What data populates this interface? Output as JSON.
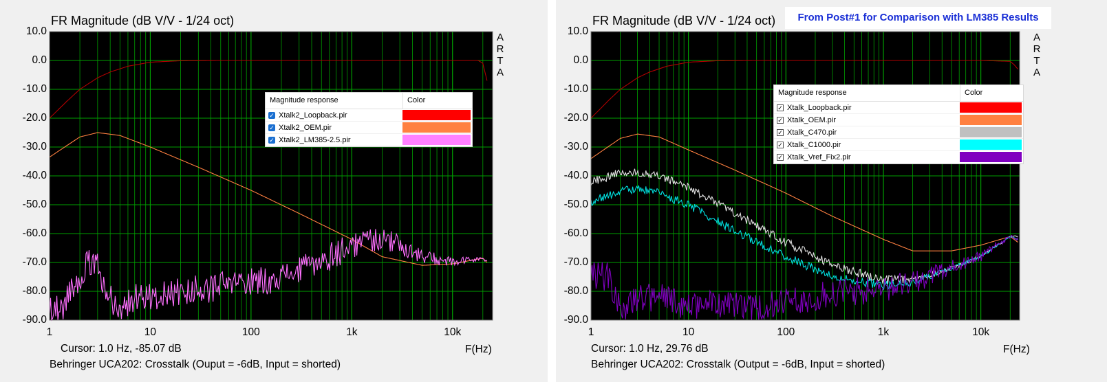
{
  "banner": "From Post#1 for Comparison with LM385 Results",
  "charts": [
    {
      "title": "FR Magnitude (dB V/V - 1/24 oct)",
      "arta": [
        "A",
        "R",
        "T",
        "A"
      ],
      "cursor": "Cursor: 1.0 Hz, -85.07 dB",
      "caption": "Behringer UCA202: Crosstalk (Ouput = -6dB, Input = shorted)",
      "xaxis_label": "F(Hz)",
      "legend": {
        "header_name": "Magnitude response",
        "header_color": "Color",
        "checkbox_style": "blue",
        "items": [
          {
            "name": "Xtalk2_Loopback.pir",
            "color": "#ff0000"
          },
          {
            "name": "Xtalk2_OEM.pir",
            "color": "#ff8040"
          },
          {
            "name": "Xtalk2_LM385-2.5.pir",
            "color": "#ff80ff"
          }
        ]
      }
    },
    {
      "title": "FR Magnitude (dB V/V - 1/24 oct)",
      "arta": [
        "A",
        "R",
        "T",
        "A"
      ],
      "cursor": "Cursor: 1.0 Hz, 29.76 dB",
      "caption": "Behringer UCA202: Crosstalk (Output = -6dB, Input = shorted)",
      "xaxis_label": "F(Hz)",
      "legend": {
        "header_name": "Magnitude response",
        "header_color": "Color",
        "checkbox_style": "plain",
        "items": [
          {
            "name": "Xtalk_Loopback.pir",
            "color": "#ff0000"
          },
          {
            "name": "Xtalk_OEM.pir",
            "color": "#ff8040"
          },
          {
            "name": "Xtalk_C470.pir",
            "color": "#c0c0c0"
          },
          {
            "name": "Xtalk_C1000.pir",
            "color": "#00ffff"
          },
          {
            "name": "Xtalk_Vref_Fix2.pir",
            "color": "#8000c0"
          }
        ]
      }
    }
  ],
  "chart_data": [
    {
      "type": "line",
      "title": "FR Magnitude (dB V/V - 1/24 oct)",
      "xlabel": "F(Hz)",
      "ylabel": "",
      "xscale": "log",
      "xlim": [
        1,
        25000
      ],
      "ylim": [
        -90,
        10
      ],
      "xticks": [
        1,
        10,
        100,
        1000,
        10000
      ],
      "xtick_labels": [
        "1",
        "10",
        "100",
        "1k",
        "10k"
      ],
      "yticks": [
        10,
        0,
        -10,
        -20,
        -30,
        -40,
        -50,
        -60,
        -70,
        -80,
        -90
      ],
      "ytick_labels": [
        "10.0",
        "0.0",
        "-10.0",
        "-20.0",
        "-30.0",
        "-40.0",
        "-50.0",
        "-60.0",
        "-70.0",
        "-80.0",
        "-90.0"
      ],
      "background": "#000000",
      "grid": true,
      "grid_color": "#00a000",
      "series": [
        {
          "name": "Xtalk2_Loopback.pir",
          "color": "#b00000",
          "noise": 0,
          "x": [
            1,
            1.5,
            2,
            3,
            4,
            6,
            10,
            20,
            50,
            100,
            1000,
            10000,
            18000,
            20000,
            22000
          ],
          "y": [
            -20,
            -14,
            -10,
            -6,
            -4,
            -2,
            -0.6,
            -0.1,
            0,
            0,
            0,
            0,
            0,
            -1,
            -7
          ]
        },
        {
          "name": "Xtalk2_OEM.pir",
          "color": "#ff8040",
          "noise": 0,
          "x": [
            1,
            2,
            3,
            5,
            10,
            30,
            100,
            300,
            1000,
            2000,
            5000,
            10000,
            20000,
            22000
          ],
          "y": [
            -33.5,
            -26.5,
            -25,
            -26,
            -30,
            -37,
            -45,
            -53,
            -62,
            -68,
            -71,
            -70.5,
            -68.5,
            -70
          ]
        },
        {
          "name": "Xtalk2_LM385-2.5.pir",
          "color": "#ff70ff",
          "noise": 5,
          "x": [
            1,
            1.3,
            1.8,
            2.5,
            3,
            4,
            5,
            8,
            12,
            20,
            40,
            80,
            150,
            300,
            600,
            1000,
            1500,
            2000,
            3000,
            5000,
            10000,
            20000,
            22000
          ],
          "y": [
            -85,
            -86,
            -77,
            -70,
            -72,
            -82,
            -86,
            -81,
            -82,
            -80,
            -79,
            -77,
            -76,
            -73,
            -68,
            -64,
            -62,
            -61.5,
            -64,
            -68,
            -70,
            -68.5,
            -70
          ]
        }
      ]
    },
    {
      "type": "line",
      "title": "FR Magnitude (dB V/V - 1/24 oct)",
      "xlabel": "F(Hz)",
      "ylabel": "",
      "xscale": "log",
      "xlim": [
        1,
        25000
      ],
      "ylim": [
        -90,
        10
      ],
      "xticks": [
        1,
        10,
        100,
        1000,
        10000
      ],
      "xtick_labels": [
        "1",
        "10",
        "100",
        "1k",
        "10k"
      ],
      "yticks": [
        10,
        0,
        -10,
        -20,
        -30,
        -40,
        -50,
        -60,
        -70,
        -80,
        -90
      ],
      "ytick_labels": [
        "10.0",
        "0.0",
        "-10.0",
        "-20.0",
        "-30.0",
        "-40.0",
        "-50.0",
        "-60.0",
        "-70.0",
        "-80.0",
        "-90.0"
      ],
      "background": "#000000",
      "grid": true,
      "grid_color": "#00a000",
      "series": [
        {
          "name": "Xtalk_Loopback.pir",
          "color": "#b00000",
          "noise": 0,
          "x": [
            1,
            1.5,
            2,
            3,
            4,
            6,
            10,
            20,
            50,
            100,
            1000,
            10000,
            20000,
            22000,
            24000
          ],
          "y": [
            -20,
            -14,
            -10,
            -6,
            -4,
            -2,
            -0.6,
            -0.1,
            0,
            0,
            0,
            0,
            -0.3,
            -1.5,
            -3
          ]
        },
        {
          "name": "Xtalk_OEM.pir",
          "color": "#ff8040",
          "noise": 0,
          "x": [
            1,
            2,
            3,
            5,
            10,
            30,
            100,
            300,
            1000,
            2000,
            5000,
            10000,
            20000,
            24000
          ],
          "y": [
            -34,
            -27,
            -25.5,
            -26.5,
            -31,
            -38,
            -46,
            -54,
            -62,
            -66,
            -66,
            -64,
            -61,
            -63
          ]
        },
        {
          "name": "Xtalk_C470.pir",
          "color": "#e0e0e0",
          "noise": 1.5,
          "x": [
            1,
            2,
            3,
            5,
            10,
            30,
            100,
            300,
            1000,
            2000,
            5000,
            10000,
            20000,
            24000
          ],
          "y": [
            -42,
            -39,
            -38.5,
            -40,
            -44,
            -53,
            -63,
            -71,
            -76,
            -76,
            -72,
            -68,
            -61,
            -61
          ]
        },
        {
          "name": "Xtalk_C1000.pir",
          "color": "#00e0e0",
          "noise": 1.5,
          "x": [
            1,
            2,
            3,
            5,
            10,
            30,
            100,
            300,
            1000,
            2000,
            5000,
            10000,
            20000,
            24000
          ],
          "y": [
            -49,
            -45,
            -44.5,
            -46,
            -50,
            -59,
            -68,
            -75,
            -78,
            -77,
            -72,
            -68,
            -61,
            -62
          ]
        },
        {
          "name": "Xtalk_Vref_Fix2.pir",
          "color": "#8000c0",
          "noise": 5,
          "x": [
            1,
            1.5,
            2,
            3,
            5,
            10,
            20,
            50,
            100,
            300,
            1000,
            2000,
            5000,
            10000,
            20000,
            24000
          ],
          "y": [
            -74,
            -75,
            -86,
            -82,
            -82,
            -85,
            -84,
            -86,
            -84,
            -81,
            -79,
            -77,
            -72,
            -68,
            -61,
            -62
          ]
        }
      ]
    }
  ]
}
